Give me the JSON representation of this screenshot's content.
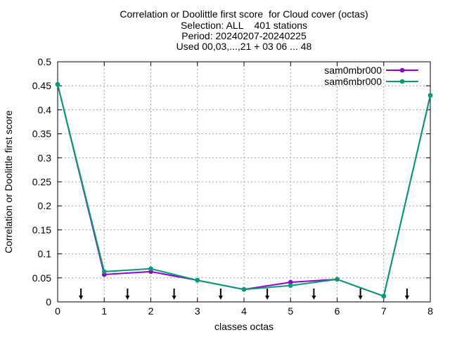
{
  "chart_data": {
    "type": "line",
    "title_lines": [
      "Correlation or Doolittle first score  for Cloud cover (octas)",
      "Selection: ALL    401 stations",
      "Period: 20240207-20240225",
      "Used 00,03,...,21 + 03 06 ... 48"
    ],
    "xlabel": "classes octas",
    "ylabel": "Correlation or Doolittle first score",
    "xlim": [
      0,
      8
    ],
    "ylim": [
      0,
      0.5
    ],
    "xticks": [
      "0",
      "1",
      "2",
      "3",
      "4",
      "5",
      "6",
      "7",
      "8"
    ],
    "yticks": [
      "0",
      "0.05",
      "0.1",
      "0.15",
      "0.2",
      "0.25",
      "0.3",
      "0.35",
      "0.4",
      "0.45",
      "0.5"
    ],
    "grid": true,
    "legend_position": "top-right",
    "x": [
      0,
      1,
      2,
      3,
      4,
      5,
      6,
      7,
      8
    ],
    "series": [
      {
        "name": "sam0mbr000",
        "color": "#9400d3",
        "values": [
          0.453,
          0.057,
          0.063,
          0.045,
          0.026,
          0.041,
          0.047,
          0.012,
          0.43
        ]
      },
      {
        "name": "sam6mbr000",
        "color": "#009e73",
        "values": [
          0.453,
          0.063,
          0.069,
          0.045,
          0.026,
          0.034,
          0.047,
          0.012,
          0.43
        ]
      }
    ],
    "arrow_marks_x": [
      0.5,
      1.5,
      2.5,
      3.5,
      4.5,
      5.5,
      6.5,
      7.5
    ]
  }
}
